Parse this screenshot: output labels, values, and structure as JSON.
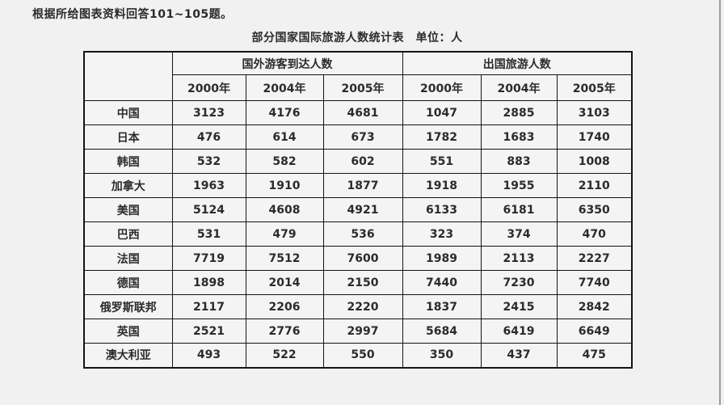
{
  "page": {
    "instruction": "根据所给图表资料回答101~105题。",
    "title": "部分国家国际旅游人数统计表　单位：人"
  },
  "table": {
    "group_headers": [
      "国外游客到达人数",
      "出国旅游人数"
    ],
    "year_headers": [
      "2000年",
      "2004年",
      "2005年",
      "2000年",
      "2004年",
      "2005年"
    ],
    "rows": [
      {
        "country": "中国",
        "values": [
          3123,
          4176,
          4681,
          1047,
          2885,
          3103
        ]
      },
      {
        "country": "日本",
        "values": [
          476,
          614,
          673,
          1782,
          1683,
          1740
        ]
      },
      {
        "country": "韩国",
        "values": [
          532,
          582,
          602,
          551,
          883,
          1008
        ]
      },
      {
        "country": "加拿大",
        "values": [
          1963,
          1910,
          1877,
          1918,
          1955,
          2110
        ]
      },
      {
        "country": "美国",
        "values": [
          5124,
          4608,
          4921,
          6133,
          6181,
          6350
        ]
      },
      {
        "country": "巴西",
        "values": [
          531,
          479,
          536,
          323,
          374,
          470
        ]
      },
      {
        "country": "法国",
        "values": [
          7719,
          7512,
          7600,
          1989,
          2113,
          2227
        ]
      },
      {
        "country": "德国",
        "values": [
          1898,
          2014,
          2150,
          7440,
          7230,
          7740
        ]
      },
      {
        "country": "俄罗斯联邦",
        "values": [
          2117,
          2206,
          2220,
          1837,
          2415,
          2842
        ]
      },
      {
        "country": "英国",
        "values": [
          2521,
          2776,
          2997,
          5684,
          6419,
          6649
        ]
      },
      {
        "country": "澳大利亚",
        "values": [
          493,
          522,
          550,
          350,
          437,
          475
        ]
      }
    ]
  },
  "colors": {
    "page_background": "#f1f1f1",
    "cell_background": "#f4f4f4",
    "border": "#141414",
    "text": "#2b2b2b",
    "window_edge": "#9c9c9c"
  }
}
